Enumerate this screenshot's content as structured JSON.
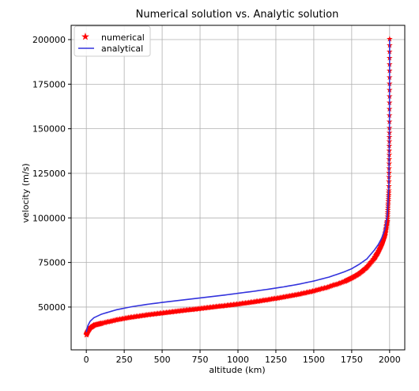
{
  "chart_data": {
    "type": "line",
    "title": "Numerical solution vs. Analytic solution",
    "xlabel": "altitude (km)",
    "ylabel": "velocity (m/s)",
    "xlim": [
      -100,
      2100
    ],
    "ylim": [
      26000,
      208000
    ],
    "xticks": [
      0,
      250,
      500,
      750,
      1000,
      1250,
      1500,
      1750,
      2000
    ],
    "yticks": [
      50000,
      75000,
      100000,
      125000,
      150000,
      175000,
      200000
    ],
    "grid": true,
    "legend_position": "top-left",
    "series": [
      {
        "name": "numerical",
        "style": "star-markers",
        "color": "#ff0000",
        "x": [
          0,
          10,
          25,
          50,
          100,
          200,
          300,
          400,
          500,
          600,
          700,
          800,
          900,
          1000,
          1100,
          1200,
          1300,
          1400,
          1500,
          1600,
          1700,
          1750,
          1800,
          1850,
          1900,
          1925,
          1950,
          1970,
          1985,
          1995,
          1999,
          2000
        ],
        "y": [
          34000,
          36000,
          38000,
          39500,
          40500,
          42500,
          44000,
          45200,
          46300,
          47300,
          48300,
          49300,
          50300,
          51300,
          52500,
          53800,
          55200,
          56800,
          58700,
          61000,
          64000,
          66000,
          68500,
          72000,
          77000,
          80500,
          85000,
          90000,
          98000,
          115000,
          150000,
          200000
        ]
      },
      {
        "name": "analytical",
        "style": "line",
        "color": "#3333dd",
        "x": [
          0,
          10,
          25,
          50,
          100,
          200,
          300,
          400,
          500,
          600,
          700,
          800,
          900,
          1000,
          1100,
          1200,
          1300,
          1400,
          1500,
          1600,
          1700,
          1750,
          1800,
          1850,
          1900,
          1925,
          1950,
          1970,
          1985,
          1995,
          1999,
          2000
        ],
        "y": [
          36000,
          39500,
          42000,
          44000,
          46000,
          48500,
          50200,
          51500,
          52600,
          53600,
          54600,
          55600,
          56600,
          57700,
          58800,
          60000,
          61300,
          62800,
          64600,
          66800,
          69700,
          71500,
          74000,
          77000,
          82000,
          85000,
          89000,
          94000,
          102000,
          118000,
          150000,
          200000
        ]
      }
    ]
  }
}
